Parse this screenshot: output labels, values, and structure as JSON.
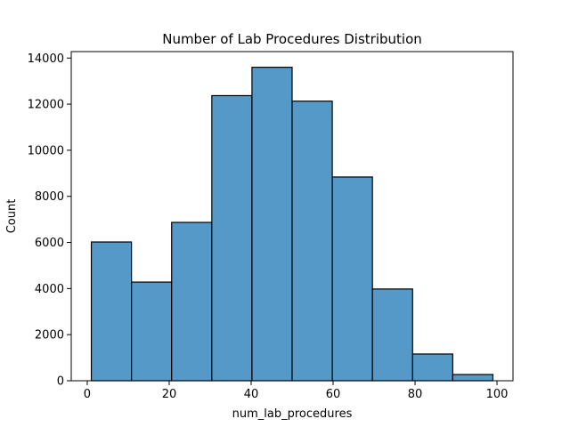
{
  "chart_data": {
    "type": "bar",
    "title": "Number of Lab Procedures Distribution",
    "xlabel": "num_lab_procedures",
    "ylabel": "Count",
    "bin_edges": [
      1,
      10.8,
      20.6,
      30.4,
      40.2,
      50,
      59.8,
      69.6,
      79.4,
      89.2,
      99
    ],
    "values": [
      6020,
      4280,
      6870,
      12370,
      13600,
      12130,
      8840,
      3980,
      1160,
      270
    ],
    "xlim": [
      -3.9,
      103.9
    ],
    "ylim": [
      0,
      14280
    ],
    "xticks": [
      0,
      20,
      40,
      60,
      80,
      100
    ],
    "yticks": [
      0,
      2000,
      4000,
      6000,
      8000,
      10000,
      12000,
      14000
    ],
    "grid": false,
    "bar_color": "#5499c7",
    "edge_color": "#000000"
  }
}
